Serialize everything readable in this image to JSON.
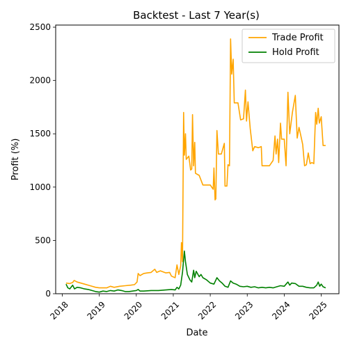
{
  "chart_data": {
    "type": "line",
    "title": "Backtest - Last 7 Year(s)",
    "xlabel": "Date",
    "ylabel": "Profit (%)",
    "xlim": [
      2017.82,
      2025.48
    ],
    "ylim": [
      0,
      2520
    ],
    "x_ticks": [
      2018,
      2019,
      2020,
      2021,
      2022,
      2023,
      2024,
      2025
    ],
    "x_tick_labels": [
      "2018",
      "2019",
      "2020",
      "2021",
      "2022",
      "2023",
      "2024",
      "2025"
    ],
    "y_ticks": [
      0,
      500,
      1000,
      1500,
      2000,
      2500
    ],
    "y_tick_labels": [
      "0",
      "500",
      "1000",
      "1500",
      "2000",
      "2500"
    ],
    "grid": false,
    "legend_position": "top-right",
    "series": [
      {
        "name": "Trade Profit",
        "color": "#ffa500",
        "points": [
          [
            2018.1,
            100
          ],
          [
            2018.2,
            95
          ],
          [
            2018.28,
            105
          ],
          [
            2018.32,
            125
          ],
          [
            2018.4,
            110
          ],
          [
            2018.5,
            100
          ],
          [
            2018.6,
            90
          ],
          [
            2018.75,
            75
          ],
          [
            2018.9,
            60
          ],
          [
            2019.0,
            55
          ],
          [
            2019.2,
            55
          ],
          [
            2019.3,
            70
          ],
          [
            2019.4,
            60
          ],
          [
            2019.55,
            70
          ],
          [
            2019.7,
            75
          ],
          [
            2019.85,
            80
          ],
          [
            2019.95,
            85
          ],
          [
            2020.02,
            110
          ],
          [
            2020.05,
            190
          ],
          [
            2020.1,
            170
          ],
          [
            2020.2,
            190
          ],
          [
            2020.3,
            195
          ],
          [
            2020.4,
            200
          ],
          [
            2020.5,
            230
          ],
          [
            2020.55,
            200
          ],
          [
            2020.65,
            215
          ],
          [
            2020.8,
            195
          ],
          [
            2020.9,
            200
          ],
          [
            2020.95,
            165
          ],
          [
            2021.05,
            150
          ],
          [
            2021.1,
            270
          ],
          [
            2021.15,
            180
          ],
          [
            2021.2,
            260
          ],
          [
            2021.22,
            480
          ],
          [
            2021.25,
            300
          ],
          [
            2021.28,
            1700
          ],
          [
            2021.3,
            1300
          ],
          [
            2021.33,
            1500
          ],
          [
            2021.35,
            1260
          ],
          [
            2021.42,
            1290
          ],
          [
            2021.47,
            1160
          ],
          [
            2021.5,
            1170
          ],
          [
            2021.52,
            1680
          ],
          [
            2021.55,
            1200
          ],
          [
            2021.58,
            1420
          ],
          [
            2021.6,
            1130
          ],
          [
            2021.7,
            1110
          ],
          [
            2021.8,
            1020
          ],
          [
            2021.9,
            1020
          ],
          [
            2022.0,
            1020
          ],
          [
            2022.08,
            980
          ],
          [
            2022.1,
            1180
          ],
          [
            2022.13,
            880
          ],
          [
            2022.15,
            890
          ],
          [
            2022.18,
            1530
          ],
          [
            2022.22,
            1310
          ],
          [
            2022.3,
            1310
          ],
          [
            2022.38,
            1410
          ],
          [
            2022.4,
            1010
          ],
          [
            2022.45,
            1010
          ],
          [
            2022.48,
            1210
          ],
          [
            2022.52,
            1200
          ],
          [
            2022.55,
            2390
          ],
          [
            2022.58,
            2060
          ],
          [
            2022.62,
            2200
          ],
          [
            2022.65,
            1790
          ],
          [
            2022.75,
            1790
          ],
          [
            2022.82,
            1630
          ],
          [
            2022.9,
            1640
          ],
          [
            2022.95,
            1910
          ],
          [
            2022.98,
            1620
          ],
          [
            2023.02,
            1800
          ],
          [
            2023.08,
            1550
          ],
          [
            2023.15,
            1340
          ],
          [
            2023.2,
            1380
          ],
          [
            2023.3,
            1370
          ],
          [
            2023.38,
            1380
          ],
          [
            2023.4,
            1200
          ],
          [
            2023.6,
            1200
          ],
          [
            2023.7,
            1250
          ],
          [
            2023.75,
            1480
          ],
          [
            2023.78,
            1310
          ],
          [
            2023.82,
            1450
          ],
          [
            2023.85,
            1230
          ],
          [
            2023.9,
            1600
          ],
          [
            2023.93,
            1450
          ],
          [
            2024.0,
            1450
          ],
          [
            2024.05,
            1200
          ],
          [
            2024.1,
            1890
          ],
          [
            2024.15,
            1500
          ],
          [
            2024.22,
            1700
          ],
          [
            2024.3,
            1860
          ],
          [
            2024.35,
            1460
          ],
          [
            2024.4,
            1560
          ],
          [
            2024.45,
            1480
          ],
          [
            2024.5,
            1400
          ],
          [
            2024.55,
            1200
          ],
          [
            2024.6,
            1210
          ],
          [
            2024.65,
            1320
          ],
          [
            2024.7,
            1220
          ],
          [
            2024.75,
            1230
          ],
          [
            2024.8,
            1220
          ],
          [
            2024.85,
            1700
          ],
          [
            2024.88,
            1590
          ],
          [
            2024.92,
            1740
          ],
          [
            2024.95,
            1600
          ],
          [
            2025.0,
            1660
          ],
          [
            2025.05,
            1390
          ],
          [
            2025.12,
            1390
          ]
        ]
      },
      {
        "name": "Hold Profit",
        "color": "#008000",
        "points": [
          [
            2018.1,
            90
          ],
          [
            2018.15,
            55
          ],
          [
            2018.2,
            45
          ],
          [
            2018.28,
            80
          ],
          [
            2018.33,
            45
          ],
          [
            2018.4,
            60
          ],
          [
            2018.5,
            55
          ],
          [
            2018.6,
            45
          ],
          [
            2018.7,
            40
          ],
          [
            2018.8,
            30
          ],
          [
            2018.9,
            20
          ],
          [
            2019.0,
            15
          ],
          [
            2019.1,
            25
          ],
          [
            2019.2,
            20
          ],
          [
            2019.3,
            30
          ],
          [
            2019.4,
            25
          ],
          [
            2019.5,
            35
          ],
          [
            2019.6,
            30
          ],
          [
            2019.7,
            20
          ],
          [
            2019.8,
            20
          ],
          [
            2019.9,
            25
          ],
          [
            2020.0,
            30
          ],
          [
            2020.05,
            40
          ],
          [
            2020.1,
            25
          ],
          [
            2020.2,
            25
          ],
          [
            2020.4,
            30
          ],
          [
            2020.6,
            30
          ],
          [
            2020.8,
            35
          ],
          [
            2020.95,
            40
          ],
          [
            2021.05,
            35
          ],
          [
            2021.1,
            60
          ],
          [
            2021.15,
            45
          ],
          [
            2021.2,
            80
          ],
          [
            2021.25,
            200
          ],
          [
            2021.3,
            400
          ],
          [
            2021.33,
            300
          ],
          [
            2021.38,
            180
          ],
          [
            2021.45,
            130
          ],
          [
            2021.5,
            110
          ],
          [
            2021.55,
            220
          ],
          [
            2021.58,
            150
          ],
          [
            2021.62,
            210
          ],
          [
            2021.7,
            160
          ],
          [
            2021.75,
            180
          ],
          [
            2021.8,
            150
          ],
          [
            2021.9,
            130
          ],
          [
            2022.0,
            100
          ],
          [
            2022.1,
            90
          ],
          [
            2022.18,
            150
          ],
          [
            2022.25,
            120
          ],
          [
            2022.32,
            100
          ],
          [
            2022.4,
            70
          ],
          [
            2022.48,
            60
          ],
          [
            2022.55,
            120
          ],
          [
            2022.62,
            100
          ],
          [
            2022.7,
            90
          ],
          [
            2022.8,
            70
          ],
          [
            2022.9,
            65
          ],
          [
            2023.0,
            70
          ],
          [
            2023.1,
            60
          ],
          [
            2023.2,
            65
          ],
          [
            2023.3,
            55
          ],
          [
            2023.4,
            60
          ],
          [
            2023.5,
            55
          ],
          [
            2023.6,
            60
          ],
          [
            2023.7,
            55
          ],
          [
            2023.8,
            65
          ],
          [
            2023.9,
            75
          ],
          [
            2024.0,
            70
          ],
          [
            2024.1,
            110
          ],
          [
            2024.15,
            80
          ],
          [
            2024.2,
            100
          ],
          [
            2024.3,
            95
          ],
          [
            2024.4,
            70
          ],
          [
            2024.5,
            70
          ],
          [
            2024.6,
            60
          ],
          [
            2024.7,
            55
          ],
          [
            2024.8,
            55
          ],
          [
            2024.88,
            80
          ],
          [
            2024.92,
            110
          ],
          [
            2024.96,
            70
          ],
          [
            2025.0,
            90
          ],
          [
            2025.05,
            65
          ],
          [
            2025.12,
            55
          ]
        ]
      }
    ]
  }
}
